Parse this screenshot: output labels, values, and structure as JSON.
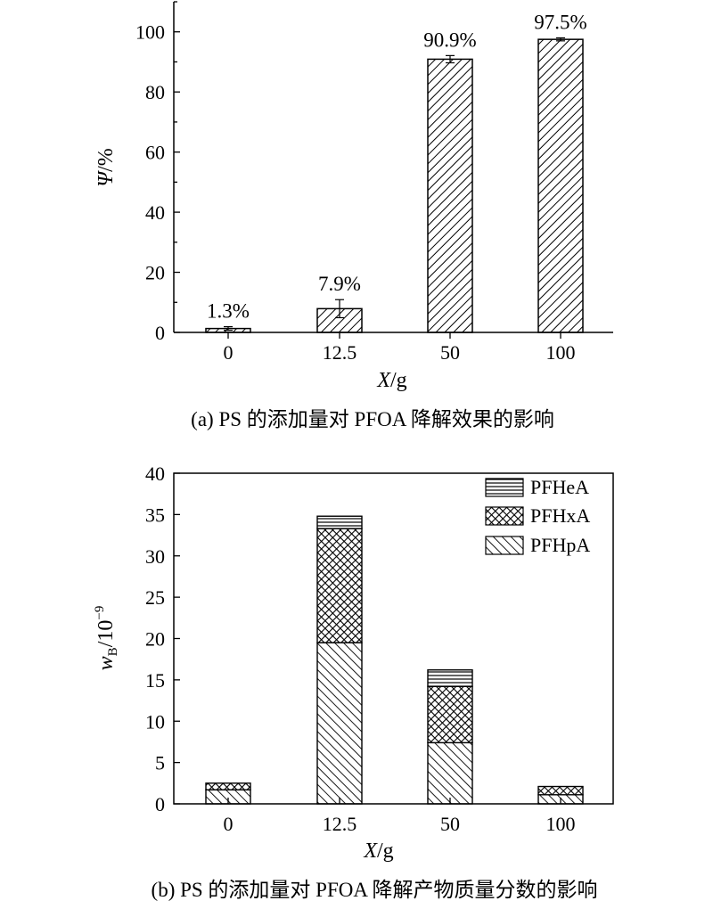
{
  "chart_data": [
    {
      "type": "bar",
      "caption": "(a) PS 的添加量对 PFOA 降解效果的影响",
      "xlabel": {
        "italic": "X",
        "rest": "/g"
      },
      "ylabel": {
        "italic": "Ψ",
        "rest": "/%"
      },
      "categories": [
        "0",
        "12.5",
        "50",
        "100"
      ],
      "values": [
        1.3,
        7.9,
        90.9,
        97.5
      ],
      "errors": [
        0.6,
        3.0,
        1.2,
        0.5
      ],
      "data_labels": [
        "1.3%",
        "7.9%",
        "90.9%",
        "97.5%"
      ],
      "ylim": [
        0,
        110
      ],
      "yticks": [
        0,
        20,
        40,
        60,
        80,
        100
      ],
      "yticks_minor_step": 10,
      "pattern": "diagonal-hatch"
    },
    {
      "type": "bar",
      "stacked": true,
      "caption": "(b) PS 的添加量对 PFOA 降解产物质量分数的影响",
      "xlabel": {
        "italic": "X",
        "rest": "/g"
      },
      "ylabel": {
        "italic": "w",
        "sub": "B",
        "rest": "/10",
        "sup": "−9"
      },
      "categories": [
        "0",
        "12.5",
        "50",
        "100"
      ],
      "series": [
        {
          "name": "PFHpA",
          "values": [
            1.7,
            19.5,
            7.4,
            1.1
          ],
          "pattern": "back-diagonal"
        },
        {
          "name": "PFHxA",
          "values": [
            0.8,
            13.8,
            6.8,
            1.0
          ],
          "pattern": "crosshatch"
        },
        {
          "name": "PFHeA",
          "values": [
            0.0,
            1.5,
            2.0,
            0.0
          ],
          "pattern": "horizontal"
        }
      ],
      "ylim": [
        0,
        40
      ],
      "yticks": [
        0,
        5,
        10,
        15,
        20,
        25,
        30,
        35,
        40
      ],
      "legend_position": "top-right"
    }
  ]
}
